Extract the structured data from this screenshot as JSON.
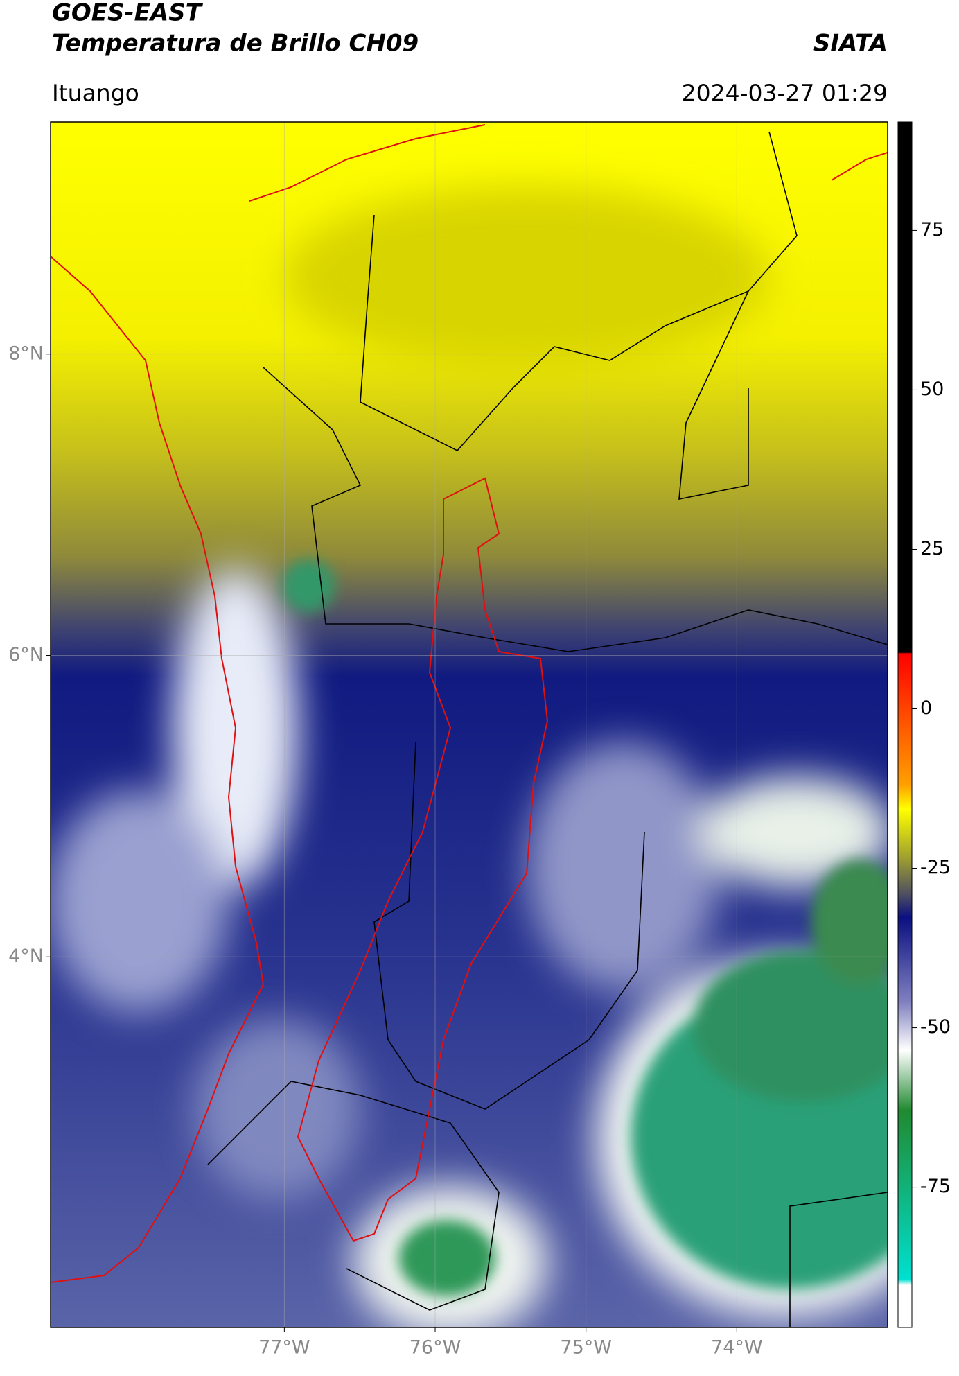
{
  "header": {
    "title": "GOES-EAST",
    "subtitle": "Temperatura de Brillo CH09",
    "brand": "SIATA",
    "location": "Ituango",
    "timestamp": "2024-03-27 01:29"
  },
  "map": {
    "xlim": [
      -78.55,
      -73.0
    ],
    "ylim": [
      1.54,
      9.54
    ],
    "xticks": [
      {
        "value": -77,
        "label": "77°W"
      },
      {
        "value": -76,
        "label": "76°W"
      },
      {
        "value": -75,
        "label": "75°W"
      },
      {
        "value": -74,
        "label": "74°W"
      }
    ],
    "yticks": [
      {
        "value": 8,
        "label": "8°N"
      },
      {
        "value": 6,
        "label": "6°N"
      },
      {
        "value": 4,
        "label": "4°N"
      }
    ],
    "grid": true
  },
  "colorbar": {
    "clim": [
      -97,
      92
    ],
    "ticks": [
      75,
      50,
      25,
      0,
      -25,
      -50,
      -75
    ]
  }
}
